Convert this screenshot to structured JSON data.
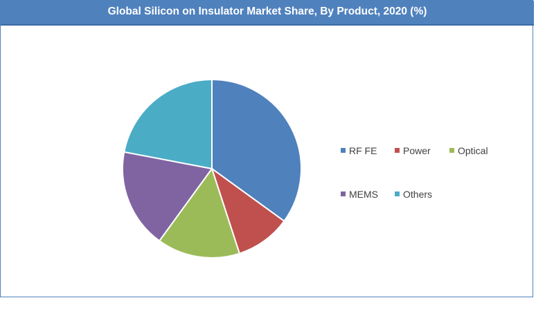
{
  "chart_data": {
    "type": "pie",
    "title": "Global Silicon on Insulator Market Share, By Product, 2020 (%)",
    "legend_position": "right",
    "slices": [
      {
        "label": "RF FE",
        "value": 35,
        "color": "#4f81bd"
      },
      {
        "label": "Power",
        "value": 10,
        "color": "#c0504d"
      },
      {
        "label": "Optical",
        "value": 15,
        "color": "#9bbb59"
      },
      {
        "label": "MEMS",
        "value": 18,
        "color": "#8064a2"
      },
      {
        "label": "Others",
        "value": 22,
        "color": "#4bacc6"
      }
    ]
  }
}
